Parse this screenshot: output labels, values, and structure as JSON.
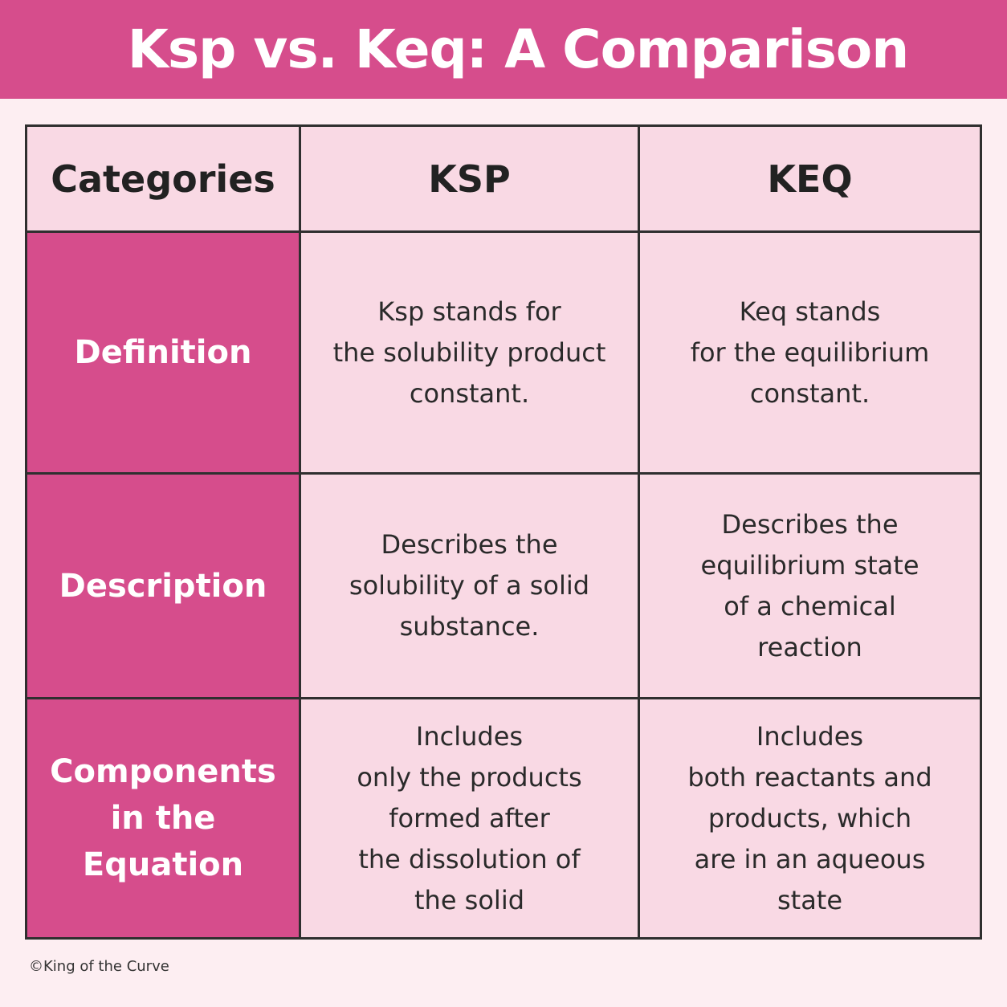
{
  "title": "Ksp vs. Keq: A Comparison",
  "headers": [
    "Categories",
    "KSP",
    "KEQ"
  ],
  "rows": [
    {
      "category": [
        "Definition"
      ],
      "ksp": [
        "Ksp stands for",
        "the solubility product",
        "constant."
      ],
      "keq": [
        "Keq stands",
        "for the equilibrium",
        "constant."
      ]
    },
    {
      "category": [
        "Description"
      ],
      "ksp": [
        "Describes the",
        "solubility of a solid",
        "substance."
      ],
      "keq": [
        "Describes the",
        "equilibrium state",
        "of a chemical",
        "reaction"
      ]
    },
    {
      "category": [
        "Components",
        "in the",
        "Equation"
      ],
      "ksp": [
        "Includes",
        "only the products",
        "formed after",
        "the dissolution of",
        "the solid"
      ],
      "keq": [
        "Includes",
        "both reactants and",
        "products, which",
        "are in an aqueous",
        "state"
      ]
    }
  ],
  "footer": "©King of the Curve",
  "colors": {
    "accent": "#d64d8c",
    "cell_background": "#f9d9e4",
    "page_background": "#fdeef2",
    "border": "#2f2f2f"
  }
}
